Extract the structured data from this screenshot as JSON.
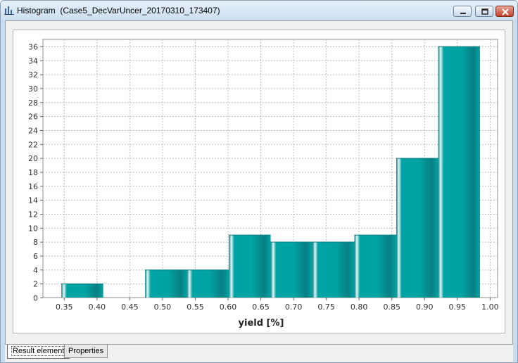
{
  "window": {
    "title": "Histogram  (Case5_DecVarUncer_20170310_173407)",
    "icon": "histogram-icon"
  },
  "tabs": [
    {
      "label": "Result element",
      "active": true
    },
    {
      "label": "Properties",
      "active": false
    }
  ],
  "colors": {
    "bar_main": "#00a3a3",
    "bar_light": "#e6f7f7",
    "bar_dark": "#087f84",
    "grid": "#bdbdbd"
  },
  "chart_data": {
    "type": "bar",
    "title": "",
    "xlabel": "yield [%]",
    "ylabel": "",
    "xlim": [
      0.318,
      1.012
    ],
    "ylim": [
      0,
      37
    ],
    "grid": true,
    "x_ticks": [
      "0.35",
      "0.40",
      "0.45",
      "0.50",
      "0.55",
      "0.60",
      "0.65",
      "0.70",
      "0.75",
      "0.80",
      "0.85",
      "0.90",
      "0.95",
      "1.00"
    ],
    "y_ticks": [
      "0",
      "2",
      "4",
      "6",
      "8",
      "10",
      "12",
      "14",
      "16",
      "18",
      "20",
      "22",
      "24",
      "26",
      "28",
      "30",
      "32",
      "34",
      "36"
    ],
    "bins": [
      {
        "start": 0.3461,
        "end": 0.41,
        "value": 2
      },
      {
        "start": 0.41,
        "end": 0.4739,
        "value": 0
      },
      {
        "start": 0.4739,
        "end": 0.5378,
        "value": 4
      },
      {
        "start": 0.5378,
        "end": 0.6017,
        "value": 4
      },
      {
        "start": 0.6017,
        "end": 0.6656,
        "value": 9
      },
      {
        "start": 0.6656,
        "end": 0.7295,
        "value": 8
      },
      {
        "start": 0.7295,
        "end": 0.7934,
        "value": 8
      },
      {
        "start": 0.7934,
        "end": 0.8573,
        "value": 9
      },
      {
        "start": 0.8573,
        "end": 0.9212,
        "value": 20
      },
      {
        "start": 0.9212,
        "end": 0.9851,
        "value": 36
      }
    ]
  }
}
